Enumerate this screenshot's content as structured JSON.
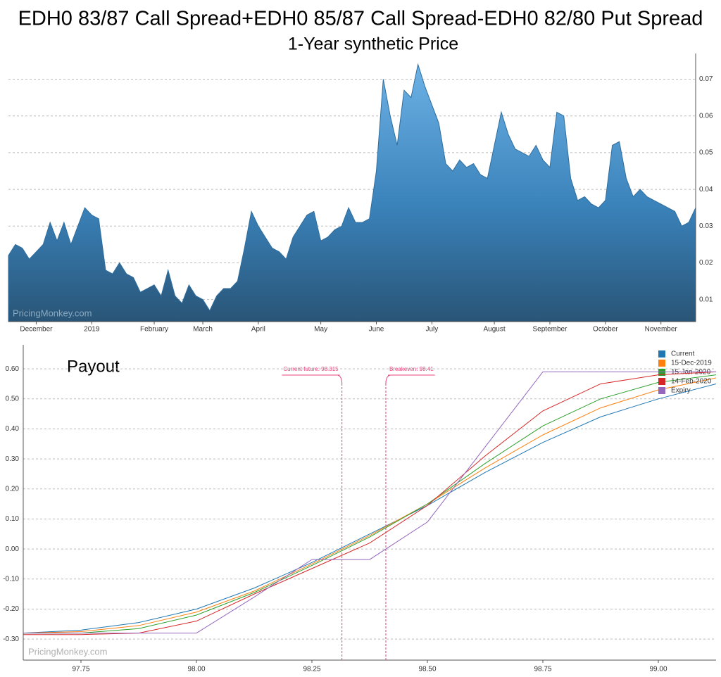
{
  "title": "EDH0 83/87 Call Spread+EDH0 85/87 Call Spread-EDH0 82/80 Put Spread",
  "chart_data": [
    {
      "type": "area",
      "title": "1-Year synthetic Price",
      "watermark": "PricingMonkey.com",
      "color": "#2f6d9c",
      "categories": [
        null,
        null,
        null,
        null,
        "December",
        null,
        null,
        null,
        null,
        null,
        null,
        null,
        "2019",
        null,
        null,
        null,
        null,
        null,
        null,
        null,
        null,
        "February",
        null,
        null,
        null,
        null,
        null,
        null,
        "March",
        null,
        null,
        null,
        null,
        null,
        null,
        null,
        "April",
        null,
        null,
        null,
        null,
        null,
        null,
        null,
        null,
        "May",
        null,
        null,
        null,
        null,
        null,
        null,
        null,
        "June",
        null,
        null,
        null,
        null,
        null,
        null,
        null,
        "July",
        null,
        null,
        null,
        null,
        null,
        null,
        null,
        null,
        "August",
        null,
        null,
        null,
        null,
        null,
        null,
        null,
        "September",
        null,
        null,
        null,
        null,
        null,
        null,
        null,
        "October",
        null,
        null,
        null,
        null,
        null,
        null,
        null,
        "November",
        null,
        null,
        null,
        null,
        null
      ],
      "values": [
        0.022,
        0.025,
        0.024,
        0.021,
        0.023,
        0.025,
        0.031,
        0.026,
        0.031,
        0.025,
        0.03,
        0.035,
        0.033,
        0.032,
        0.018,
        0.017,
        0.02,
        0.017,
        0.016,
        0.012,
        0.013,
        0.014,
        0.011,
        0.018,
        0.011,
        0.009,
        0.014,
        0.011,
        0.01,
        0.007,
        0.011,
        0.013,
        0.013,
        0.015,
        0.024,
        0.034,
        0.03,
        0.027,
        0.024,
        0.023,
        0.021,
        0.027,
        0.03,
        0.033,
        0.034,
        0.026,
        0.027,
        0.029,
        0.03,
        0.035,
        0.031,
        0.031,
        0.032,
        0.045,
        0.07,
        0.06,
        0.052,
        0.067,
        0.065,
        0.074,
        0.068,
        0.063,
        0.058,
        0.047,
        0.045,
        0.048,
        0.046,
        0.047,
        0.044,
        0.043,
        0.052,
        0.061,
        0.055,
        0.051,
        0.05,
        0.049,
        0.052,
        0.048,
        0.046,
        0.061,
        0.06,
        0.043,
        0.037,
        0.038,
        0.036,
        0.035,
        0.037,
        0.052,
        0.053,
        0.043,
        0.038,
        0.04,
        0.038,
        0.037,
        0.036,
        0.035,
        0.034,
        0.03,
        0.031,
        0.035
      ],
      "ylim": [
        0.004,
        0.077
      ],
      "yticks": [
        0.01,
        0.02,
        0.03,
        0.04,
        0.05,
        0.06,
        0.07
      ],
      "grid": true
    },
    {
      "type": "line",
      "title": "Payout",
      "watermark": "PricingMonkey.com",
      "legend": "top-right",
      "x": [
        97.625,
        97.75,
        97.875,
        98.0,
        98.125,
        98.25,
        98.375,
        98.5,
        98.625,
        98.75,
        98.875,
        99.0,
        99.125
      ],
      "series": [
        {
          "name": "Current",
          "color": "#1f77b4",
          "values": [
            -0.28,
            -0.27,
            -0.245,
            -0.2,
            -0.13,
            -0.045,
            0.05,
            0.145,
            0.255,
            0.355,
            0.44,
            0.5,
            0.55
          ]
        },
        {
          "name": "15-Dec-2019",
          "color": "#ff7f0e",
          "values": [
            -0.28,
            -0.275,
            -0.255,
            -0.21,
            -0.14,
            -0.05,
            0.045,
            0.15,
            0.27,
            0.38,
            0.47,
            0.53,
            0.57
          ]
        },
        {
          "name": "15-Jan-2020",
          "color": "#2ca02c",
          "values": [
            -0.28,
            -0.28,
            -0.265,
            -0.22,
            -0.145,
            -0.055,
            0.04,
            0.15,
            0.285,
            0.41,
            0.5,
            0.555,
            0.58
          ]
        },
        {
          "name": "14-Feb-2020",
          "color": "#d62728",
          "values": [
            -0.285,
            -0.285,
            -0.28,
            -0.24,
            -0.15,
            -0.065,
            0.02,
            0.145,
            0.31,
            0.46,
            0.55,
            0.58,
            0.59
          ]
        },
        {
          "name": "Expiry",
          "color": "#9467bd",
          "values": [
            -0.28,
            -0.28,
            -0.28,
            -0.28,
            -0.16,
            -0.035,
            -0.035,
            0.09,
            0.34,
            0.59,
            0.59,
            0.59,
            0.59
          ]
        }
      ],
      "annotations": [
        {
          "label": "Current future: 98.315",
          "x": 98.315
        },
        {
          "label": "Breakeven: 98.41",
          "x": 98.41
        }
      ],
      "xlim": [
        97.625,
        99.125
      ],
      "xticks": [
        {
          "value": 97.75,
          "label": "97.75"
        },
        {
          "value": 98.0,
          "label": "98.00"
        },
        {
          "value": 98.25,
          "label": "98.25"
        },
        {
          "value": 98.5,
          "label": "98.50"
        },
        {
          "value": 98.75,
          "label": "98.75"
        },
        {
          "value": 99.0,
          "label": "99.00"
        }
      ],
      "ylim": [
        -0.37,
        0.68
      ],
      "yticks": [
        {
          "value": -0.3,
          "label": "-0.30"
        },
        {
          "value": -0.2,
          "label": "-0.20"
        },
        {
          "value": -0.1,
          "label": "-0.10"
        },
        {
          "value": 0,
          "label": "0.00"
        },
        {
          "value": 0.1,
          "label": "0.10"
        },
        {
          "value": 0.2,
          "label": "0.20"
        },
        {
          "value": 0.3,
          "label": "0.30"
        },
        {
          "value": 0.4,
          "label": "0.40"
        },
        {
          "value": 0.5,
          "label": "0.50"
        },
        {
          "value": 0.6,
          "label": "0.60"
        }
      ],
      "grid": true
    }
  ]
}
